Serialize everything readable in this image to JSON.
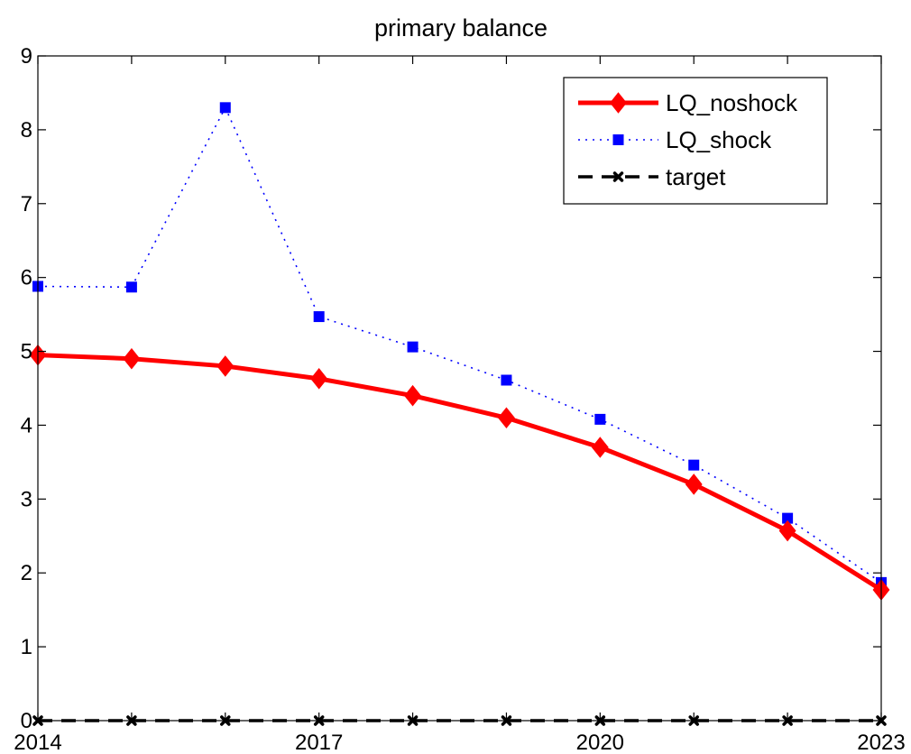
{
  "chart_data": {
    "type": "line",
    "title": "primary balance",
    "xlabel": "",
    "ylabel": "",
    "x": [
      2014,
      2015,
      2016,
      2017,
      2018,
      2019,
      2020,
      2021,
      2022,
      2023
    ],
    "xlim": [
      2014,
      2023
    ],
    "ylim": [
      0,
      9
    ],
    "xticks": [
      "2014",
      "2017",
      "2020",
      "2023"
    ],
    "yticks": [
      "0",
      "1",
      "2",
      "3",
      "4",
      "5",
      "6",
      "7",
      "8",
      "9"
    ],
    "grid": false,
    "legend_position": "top-right",
    "series": [
      {
        "name": "LQ_noshock",
        "color": "#ff0000",
        "line_style": "solid",
        "marker": "diamond",
        "values": [
          4.95,
          4.9,
          4.8,
          4.63,
          4.4,
          4.1,
          3.7,
          3.2,
          2.57,
          1.77
        ]
      },
      {
        "name": "LQ_shock",
        "color": "#0000ff",
        "line_style": "dotted",
        "marker": "square",
        "values": [
          5.88,
          5.87,
          8.3,
          5.47,
          5.06,
          4.61,
          4.08,
          3.46,
          2.74,
          1.87
        ]
      },
      {
        "name": "target",
        "color": "#000000",
        "line_style": "dashed",
        "marker": "x",
        "values": [
          0,
          0,
          0,
          0,
          0,
          0,
          0,
          0,
          0,
          0
        ]
      }
    ]
  }
}
